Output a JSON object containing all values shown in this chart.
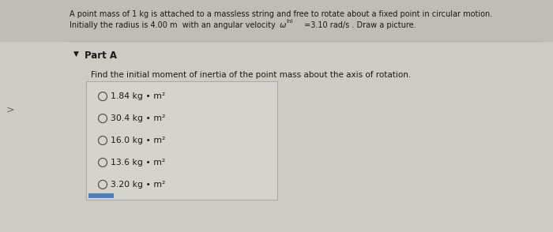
{
  "bg_color": "#cccbc4",
  "header_bg": "#bebdb6",
  "content_bg": "#d2d1ca",
  "box_bg": "#d4d3cc",
  "box_edge": "#aaaaaa",
  "text_color": "#1a1a1a",
  "line1": "A point mass of 1 kg is attached to a massless string and free to rotate about a fixed point in circular motion.",
  "line2_pre": "Initially the radius is 4.00 m  with an angular velocity ",
  "line2_omega": "ω",
  "line2_sub": "ini",
  "line2_post": " =3.10 rad/s . Draw a picture.",
  "part_label": "Part A",
  "question_text": "Find the initial moment of inertia of the point mass about the axis of rotation.",
  "options": [
    "1.84 kg • m²",
    "30.4 kg • m²",
    "16.0 kg • m²",
    "13.6 kg • m²",
    "3.20 kg • m²"
  ],
  "figsize": [
    7.0,
    2.94
  ],
  "dpi": 100
}
